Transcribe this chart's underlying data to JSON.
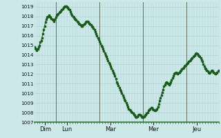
{
  "ylim": [
    1007,
    1019.5
  ],
  "yticks": [
    1007,
    1008,
    1009,
    1010,
    1011,
    1012,
    1013,
    1014,
    1015,
    1016,
    1017,
    1018,
    1019
  ],
  "day_labels": [
    "Dim",
    "Lun",
    "Mar",
    "Mer",
    "Jeu"
  ],
  "day_positions": [
    12,
    36,
    84,
    132,
    180
  ],
  "vline_positions": [
    24,
    72,
    120,
    168
  ],
  "xlim": [
    0,
    204
  ],
  "bg_color": "#cce8e8",
  "plot_bg_color": "#cce8e8",
  "line_color": "#1a5c1a",
  "marker_color": "#1a5c1a",
  "grid_h_color": "#aacece",
  "grid_v_color": "#aacece",
  "vline_color": "#607060",
  "bottom_line_color": "#2a7a2a",
  "pressure_data": [
    1014.8,
    1014.7,
    1014.6,
    1014.5,
    1014.6,
    1014.8,
    1015.0,
    1015.3,
    1015.5,
    1015.8,
    1016.2,
    1016.6,
    1017.0,
    1017.4,
    1017.7,
    1017.9,
    1018.0,
    1018.1,
    1018.0,
    1017.9,
    1017.8,
    1017.7,
    1017.6,
    1017.5,
    1017.7,
    1017.9,
    1018.1,
    1018.2,
    1018.3,
    1018.4,
    1018.5,
    1018.6,
    1018.7,
    1018.8,
    1018.9,
    1019.0,
    1019.1,
    1019.1,
    1019.0,
    1018.9,
    1018.8,
    1018.7,
    1018.5,
    1018.3,
    1018.1,
    1018.0,
    1017.9,
    1017.8,
    1017.7,
    1017.6,
    1017.5,
    1017.4,
    1017.3,
    1017.2,
    1017.1,
    1017.0,
    1017.0,
    1017.1,
    1017.2,
    1017.3,
    1017.4,
    1017.5,
    1017.5,
    1017.4,
    1017.3,
    1017.2,
    1017.1,
    1017.0,
    1016.9,
    1016.8,
    1016.6,
    1016.4,
    1016.2,
    1016.0,
    1015.8,
    1015.6,
    1015.4,
    1015.2,
    1015.0,
    1014.8,
    1014.6,
    1014.4,
    1014.2,
    1014.0,
    1013.8,
    1013.6,
    1013.4,
    1013.2,
    1013.0,
    1012.8,
    1012.6,
    1012.4,
    1012.2,
    1012.0,
    1011.8,
    1011.5,
    1011.2,
    1011.0,
    1010.8,
    1010.6,
    1010.4,
    1010.2,
    1010.0,
    1009.8,
    1009.6,
    1009.4,
    1009.2,
    1009.0,
    1008.8,
    1008.6,
    1008.4,
    1008.3,
    1008.2,
    1008.1,
    1008.0,
    1007.9,
    1007.8,
    1007.7,
    1007.6,
    1007.5,
    1007.6,
    1007.7,
    1007.8,
    1007.8,
    1007.7,
    1007.6,
    1007.5,
    1007.5,
    1007.6,
    1007.7,
    1007.8,
    1007.9,
    1008.0,
    1008.2,
    1008.3,
    1008.4,
    1008.5,
    1008.5,
    1008.4,
    1008.3,
    1008.2,
    1008.2,
    1008.3,
    1008.4,
    1008.6,
    1008.9,
    1009.2,
    1009.5,
    1009.8,
    1010.1,
    1010.4,
    1010.7,
    1010.9,
    1011.1,
    1011.2,
    1011.1,
    1011.0,
    1010.9,
    1011.0,
    1011.2,
    1011.4,
    1011.6,
    1011.8,
    1012.0,
    1012.1,
    1012.2,
    1012.1,
    1012.0,
    1012.1,
    1012.2,
    1012.3,
    1012.4,
    1012.5,
    1012.6,
    1012.7,
    1012.8,
    1012.9,
    1013.0,
    1013.1,
    1013.2,
    1013.3,
    1013.4,
    1013.5,
    1013.6,
    1013.7,
    1013.8,
    1013.9,
    1014.0,
    1014.1,
    1014.2,
    1014.1,
    1014.0,
    1013.9,
    1013.8,
    1013.7,
    1013.5,
    1013.3,
    1013.0,
    1012.8,
    1012.6,
    1012.5,
    1012.4,
    1012.3,
    1012.2,
    1012.1,
    1012.2,
    1012.3,
    1012.4,
    1012.3,
    1012.2,
    1012.1,
    1012.0,
    1012.1,
    1012.2,
    1012.3,
    1012.4
  ]
}
